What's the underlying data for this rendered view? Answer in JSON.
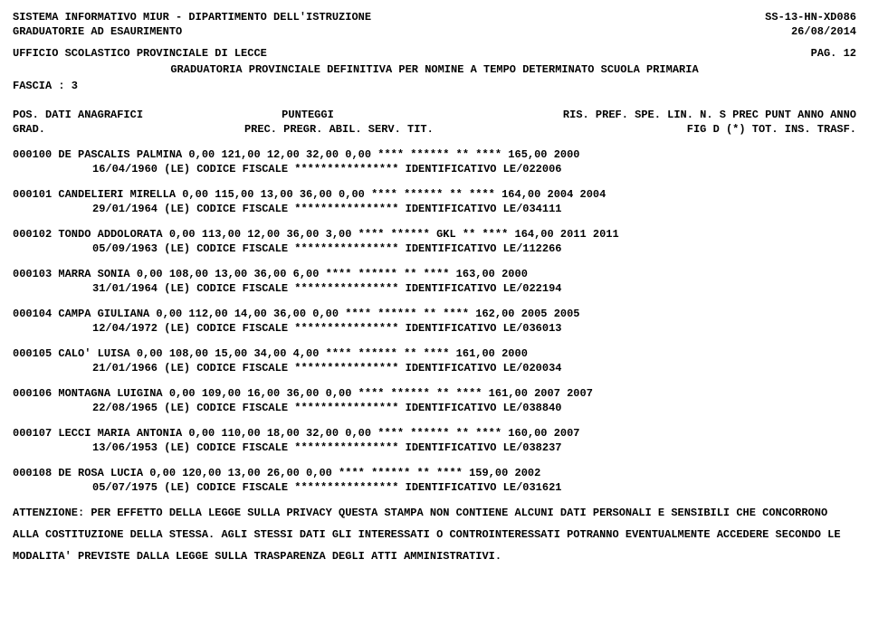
{
  "header": {
    "left1": "SISTEMA INFORMATIVO MIUR - DIPARTIMENTO DELL'ISTRUZIONE",
    "right1": "SS-13-HN-XD086",
    "left2": "GRADUATORIE AD ESAURIMENTO",
    "right2": "26/08/2014",
    "office": "UFFICIO SCOLASTICO PROVINCIALE DI LECCE",
    "page": "PAG.   12",
    "title": "GRADUATORIA PROVINCIALE DEFINITIVA PER NOMINE A TEMPO DETERMINATO  SCUOLA PRIMARIA",
    "fascia": "FASCIA : 3"
  },
  "col": {
    "h1_left": "POS.  DATI ANAGRAFICI",
    "h1_mid": "PUNTEGGI",
    "h1_right": "RIS. PREF.  SPE. LIN.  N. S  PREC  PUNT   ANNO ANNO",
    "h2_left": "GRAD.",
    "h2_mid": "PREC.  PREGR.  ABIL.  SERV.   TIT.",
    "h2_right": "FIG D  (*)   TOT.   INS. TRASF."
  },
  "rows": [
    {
      "main": "000100 DE PASCALIS        PALMINA         0,00  121,00  12,00  32,00   0,00 **** ******            **   **** 165,00 2000",
      "detail": "16/04/1960  (LE)  CODICE FISCALE **************** IDENTIFICATIVO LE/022006"
    },
    {
      "main": "000101 CANDELIERI         MIRELLA         0,00  115,00  13,00  36,00   0,00 **** ******            **   **** 164,00 2004 2004",
      "detail": "29/01/1964  (LE)  CODICE FISCALE **************** IDENTIFICATIVO LE/034111"
    },
    {
      "main": "000102 TONDO              ADDOLORATA      0,00  113,00  12,00  36,00   3,00 **** ****** GKL        **   **** 164,00 2011 2011",
      "detail": "05/09/1963  (LE)  CODICE FISCALE **************** IDENTIFICATIVO LE/112266"
    },
    {
      "main": "000103 MARRA              SONIA           0,00  108,00  13,00  36,00   6,00 **** ******            **   **** 163,00 2000",
      "detail": "31/01/1964  (LE)  CODICE FISCALE **************** IDENTIFICATIVO LE/022194"
    },
    {
      "main": "000104 CAMPA              GIULIANA        0,00  112,00  14,00  36,00   0,00 **** ******            **   **** 162,00 2005 2005",
      "detail": "12/04/1972  (LE)  CODICE FISCALE **************** IDENTIFICATIVO LE/036013"
    },
    {
      "main": "000105 CALO'              LUISA           0,00  108,00  15,00  34,00   4,00 **** ******            **   **** 161,00 2000",
      "detail": "21/01/1966  (LE)  CODICE FISCALE **************** IDENTIFICATIVO LE/020034"
    },
    {
      "main": "000106 MONTAGNA           LUIGINA         0,00  109,00  16,00  36,00   0,00 **** ******            **   **** 161,00 2007 2007",
      "detail": "22/08/1965  (LE)  CODICE FISCALE **************** IDENTIFICATIVO LE/038840"
    },
    {
      "main": "000107 LECCI              MARIA ANTONIA   0,00  110,00  18,00  32,00   0,00 **** ******            **   **** 160,00 2007",
      "detail": "13/06/1953  (LE)  CODICE FISCALE **************** IDENTIFICATIVO LE/038237"
    },
    {
      "main": "000108 DE ROSA            LUCIA           0,00  120,00  13,00  26,00   0,00 **** ******            **   **** 159,00 2002",
      "detail": "05/07/1975  (LE)  CODICE FISCALE **************** IDENTIFICATIVO LE/031621"
    }
  ],
  "footer": {
    "l1": "ATTENZIONE: PER EFFETTO DELLA LEGGE SULLA PRIVACY QUESTA STAMPA NON CONTIENE ALCUNI DATI PERSONALI E SENSIBILI CHE CONCORRONO",
    "l2": "ALLA COSTITUZIONE DELLA STESSA. AGLI STESSI DATI GLI INTERESSATI O CONTROINTERESSATI POTRANNO EVENTUALMENTE ACCEDERE SECONDO LE",
    "l3": "MODALITA' PREVISTE DALLA LEGGE SULLA TRASPARENZA DEGLI ATTI AMMINISTRATIVI."
  }
}
